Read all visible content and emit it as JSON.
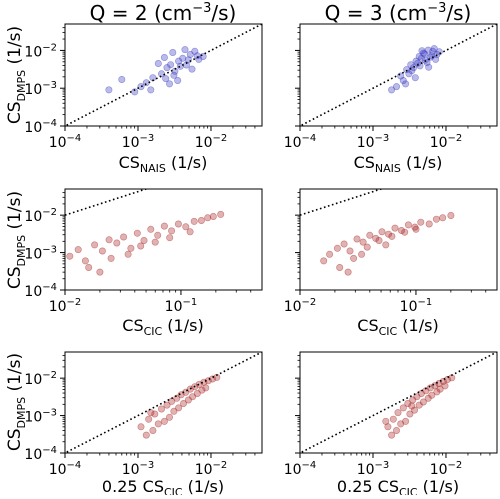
{
  "figure": {
    "column_titles": [
      {
        "main": "Q = 2 (cm",
        "sup": "−3",
        "tail": "/s)"
      },
      {
        "main": "Q = 3 (cm",
        "sup": "−3",
        "tail": "/s)"
      }
    ],
    "ylabel": {
      "main": "CS",
      "sub": "DMPS",
      "tail": " (1/s)"
    },
    "row_xlabels": [
      {
        "pre": "",
        "main": "CS",
        "sub": "NAIS",
        "tail": " (1/s)"
      },
      {
        "pre": "",
        "main": "CS",
        "sub": "CIC",
        "tail": " (1/s)"
      },
      {
        "pre": "0.25 ",
        "main": "CS",
        "sub": "CIC",
        "tail": " (1/s)"
      }
    ]
  },
  "chart_data": [
    {
      "type": "scatter",
      "id": "r1c1",
      "row": 0,
      "col": 0,
      "color": "#3b3bc4",
      "xscale": "log",
      "yscale": "log",
      "xlim": [
        0.0001,
        0.05
      ],
      "ylim": [
        0.0001,
        0.05
      ],
      "xticks": [
        "10−4",
        "10−3",
        "10−2"
      ],
      "yticks": [
        "10−4",
        "10−3",
        "10−2"
      ],
      "reference_line": "1:1",
      "x": [
        0.0011,
        0.0016,
        0.0021,
        0.0025,
        0.0028,
        0.0032,
        0.0036,
        0.0041,
        0.0046,
        0.0052,
        0.006,
        0.0068,
        0.0078,
        0.0009,
        0.0013,
        0.0019,
        0.0024,
        0.003,
        0.0035,
        0.0044,
        0.0055,
        0.0065,
        0.0023,
        0.0027,
        0.0031,
        0.0038,
        0.0015,
        0.0049,
        0.0006,
        0.0004
      ],
      "y": [
        0.0011,
        0.0019,
        0.0024,
        0.0035,
        0.0042,
        0.0028,
        0.0052,
        0.0062,
        0.0041,
        0.0078,
        0.0095,
        0.0058,
        0.0069,
        0.0008,
        0.0014,
        0.0045,
        0.0018,
        0.0088,
        0.0016,
        0.0105,
        0.0032,
        0.0072,
        0.0065,
        0.0013,
        0.0022,
        0.0038,
        0.0009,
        0.0056,
        0.0017,
        0.0009
      ]
    },
    {
      "type": "scatter",
      "id": "r1c2",
      "row": 0,
      "col": 1,
      "color": "#3b3bc4",
      "xscale": "log",
      "yscale": "log",
      "xlim": [
        0.0001,
        0.05
      ],
      "ylim": [
        0.0001,
        0.05
      ],
      "xticks": [
        "10−4",
        "10−3",
        "10−2"
      ],
      "yticks": [],
      "reference_line": "1:1",
      "x": [
        0.0021,
        0.0026,
        0.0031,
        0.0036,
        0.0041,
        0.0046,
        0.0051,
        0.0057,
        0.0064,
        0.0072,
        0.0081,
        0.0028,
        0.0034,
        0.0039,
        0.0044,
        0.0049,
        0.0055,
        0.0061,
        0.0069,
        0.0024,
        0.0033,
        0.0043,
        0.0052,
        0.0066,
        0.0018,
        0.0038,
        0.0058,
        0.0047,
        0.0029,
        0.0075
      ],
      "y": [
        0.0011,
        0.0016,
        0.0024,
        0.0035,
        0.0046,
        0.0062,
        0.0081,
        0.0102,
        0.0072,
        0.0058,
        0.0092,
        0.0013,
        0.0029,
        0.0052,
        0.0039,
        0.0085,
        0.0048,
        0.0066,
        0.0112,
        0.0021,
        0.0042,
        0.0069,
        0.0055,
        0.0095,
        0.0009,
        0.0019,
        0.0036,
        0.0098,
        0.0031,
        0.0078
      ]
    },
    {
      "type": "scatter",
      "id": "r2c1",
      "row": 1,
      "col": 0,
      "color": "#a82222",
      "xscale": "log",
      "yscale": "log",
      "xlim": [
        0.01,
        0.5
      ],
      "ylim": [
        0.0001,
        0.05
      ],
      "xticks": [
        "10−2",
        "10−1"
      ],
      "yticks": [
        "10−4",
        "10−3",
        "10−2"
      ],
      "reference_line": "1:1",
      "x": [
        0.011,
        0.013,
        0.015,
        0.018,
        0.021,
        0.024,
        0.028,
        0.032,
        0.037,
        0.042,
        0.048,
        0.055,
        0.063,
        0.072,
        0.083,
        0.095,
        0.11,
        0.13,
        0.15,
        0.17,
        0.19,
        0.22,
        0.016,
        0.025,
        0.035,
        0.045,
        0.06,
        0.08,
        0.12,
        0.02
      ],
      "y": [
        0.0008,
        0.0012,
        0.0006,
        0.0016,
        0.0011,
        0.0022,
        0.0018,
        0.0026,
        0.0013,
        0.0033,
        0.0021,
        0.0042,
        0.0029,
        0.0051,
        0.0038,
        0.0058,
        0.0049,
        0.0068,
        0.0072,
        0.0085,
        0.0092,
        0.0105,
        0.0004,
        0.0007,
        0.0009,
        0.0015,
        0.0019,
        0.0025,
        0.0036,
        0.0003
      ]
    },
    {
      "type": "scatter",
      "id": "r2c2",
      "row": 1,
      "col": 1,
      "color": "#a82222",
      "xscale": "log",
      "yscale": "log",
      "xlim": [
        0.01,
        0.5
      ],
      "ylim": [
        0.0001,
        0.05
      ],
      "xticks": [
        "10−2",
        "10−1"
      ],
      "yticks": [],
      "reference_line": "1:1",
      "x": [
        0.016,
        0.018,
        0.021,
        0.024,
        0.027,
        0.031,
        0.035,
        0.04,
        0.045,
        0.051,
        0.058,
        0.066,
        0.075,
        0.086,
        0.098,
        0.11,
        0.13,
        0.15,
        0.17,
        0.2,
        0.022,
        0.029,
        0.038,
        0.048,
        0.062,
        0.08,
        0.1,
        0.026,
        0.034,
        0.055
      ],
      "y": [
        0.0006,
        0.0009,
        0.0013,
        0.0017,
        0.0011,
        0.0023,
        0.0019,
        0.0029,
        0.0024,
        0.0036,
        0.0031,
        0.0045,
        0.0039,
        0.0055,
        0.0048,
        0.0065,
        0.0058,
        0.0078,
        0.0085,
        0.0098,
        0.0004,
        0.0007,
        0.0014,
        0.0021,
        0.0027,
        0.0035,
        0.0042,
        0.0003,
        0.0009,
        0.0016
      ]
    },
    {
      "type": "scatter",
      "id": "r3c1",
      "row": 2,
      "col": 0,
      "color": "#a82222",
      "xscale": "log",
      "yscale": "log",
      "xlim": [
        0.0001,
        0.05
      ],
      "ylim": [
        0.0001,
        0.05
      ],
      "xticks": [
        "10−4",
        "10−3",
        "10−2"
      ],
      "yticks": [
        "10−4",
        "10−3",
        "10−2"
      ],
      "reference_line": "1:1",
      "x": [
        0.0011,
        0.0014,
        0.0017,
        0.0021,
        0.0025,
        0.0029,
        0.0034,
        0.0039,
        0.0045,
        0.0052,
        0.006,
        0.0069,
        0.008,
        0.0092,
        0.0105,
        0.012,
        0.0016,
        0.0023,
        0.0031,
        0.0042,
        0.0056,
        0.0075,
        0.0013,
        0.0019,
        0.0027,
        0.0036,
        0.0049,
        0.0065,
        0.0085,
        0.0015
      ],
      "y": [
        0.0005,
        0.0008,
        0.0011,
        0.0015,
        0.0019,
        0.0024,
        0.0029,
        0.0036,
        0.0042,
        0.0051,
        0.0059,
        0.0068,
        0.0078,
        0.0085,
        0.0095,
        0.0105,
        0.0004,
        0.0007,
        0.0013,
        0.0021,
        0.0032,
        0.0048,
        0.0003,
        0.0006,
        0.0009,
        0.0016,
        0.0026,
        0.0039,
        0.0055,
        0.0012
      ]
    },
    {
      "type": "scatter",
      "id": "r3c2",
      "row": 2,
      "col": 1,
      "color": "#a82222",
      "xscale": "log",
      "yscale": "log",
      "xlim": [
        0.0001,
        0.05
      ],
      "ylim": [
        0.0001,
        0.05
      ],
      "xticks": [
        "10−4",
        "10−3",
        "10−2"
      ],
      "yticks": [],
      "reference_line": "1:1",
      "x": [
        0.0016,
        0.0019,
        0.0022,
        0.0026,
        0.003,
        0.0035,
        0.004,
        0.0046,
        0.0053,
        0.0061,
        0.007,
        0.008,
        0.0092,
        0.0105,
        0.012,
        0.0021,
        0.0028,
        0.0037,
        0.0049,
        0.0064,
        0.0083,
        0.0018,
        0.0024,
        0.0032,
        0.0043,
        0.0057,
        0.0075,
        0.0097,
        0.0015,
        0.0034
      ],
      "y": [
        0.0005,
        0.0008,
        0.0012,
        0.0016,
        0.0021,
        0.0026,
        0.0032,
        0.0039,
        0.0046,
        0.0055,
        0.0063,
        0.0072,
        0.0082,
        0.0092,
        0.0102,
        0.0004,
        0.0007,
        0.0014,
        0.0023,
        0.0035,
        0.0051,
        0.0003,
        0.0006,
        0.0011,
        0.0019,
        0.0029,
        0.0043,
        0.0062,
        0.0007,
        0.0018
      ]
    }
  ]
}
